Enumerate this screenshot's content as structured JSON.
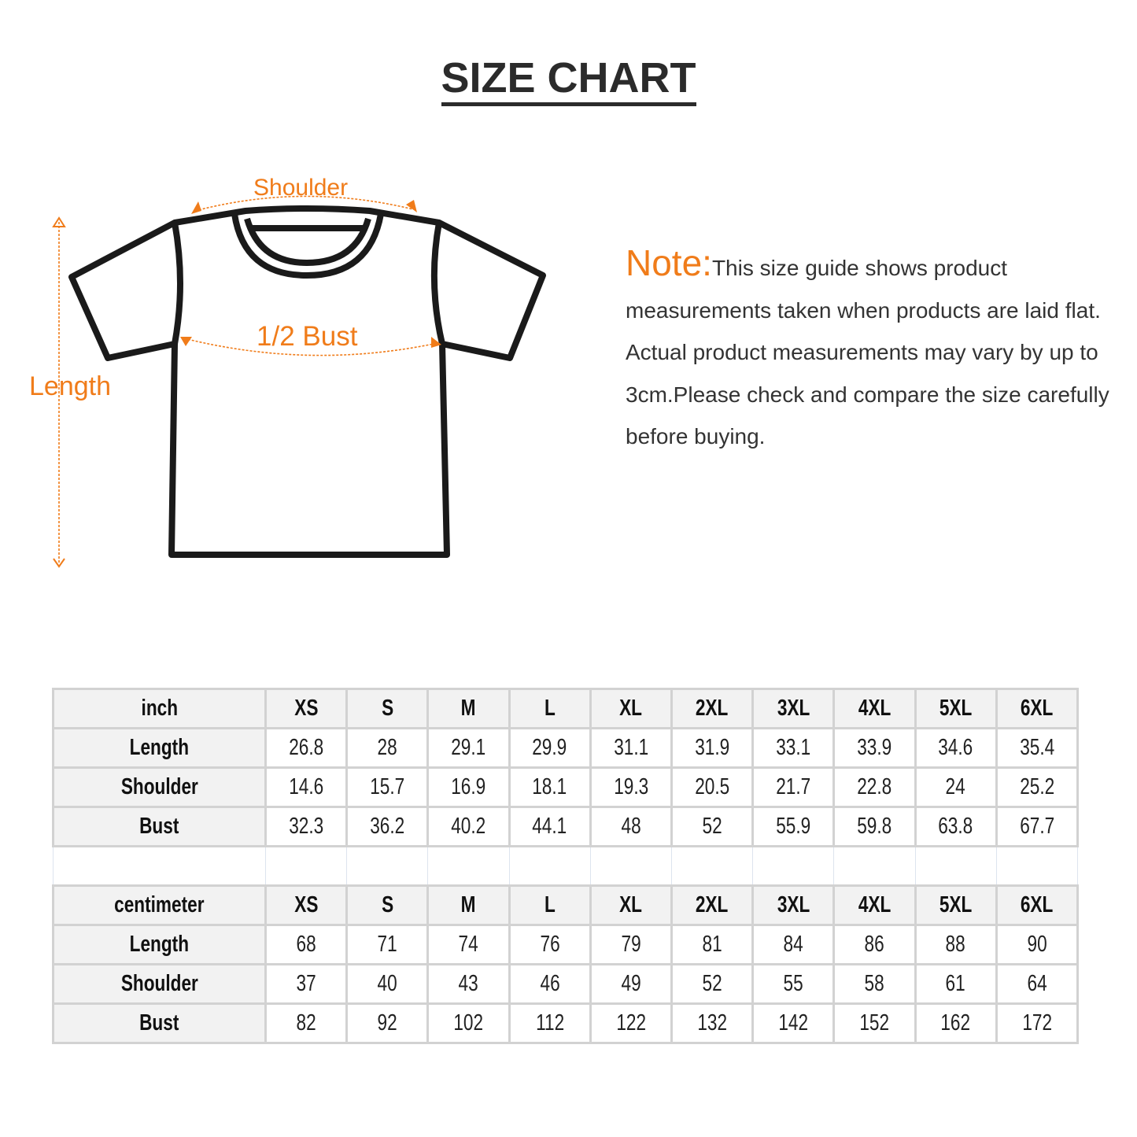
{
  "title": "SIZE CHART",
  "diagram": {
    "shoulder_label": "Shoulder",
    "bust_label": "1/2 Bust",
    "length_label": "Length",
    "accent_color": "#f07c1a"
  },
  "note": {
    "heading": "Note:",
    "text": "This size guide shows product measurements taken when products are laid flat. Actual product measurements may vary by up to 3cm.Please check and compare the size carefully before buying."
  },
  "tables": [
    {
      "unit": "inch",
      "sizes": [
        "XS",
        "S",
        "M",
        "L",
        "XL",
        "2XL",
        "3XL",
        "4XL",
        "5XL",
        "6XL"
      ],
      "rows": [
        {
          "label": "Length",
          "values": [
            "26.8",
            "28",
            "29.1",
            "29.9",
            "31.1",
            "31.9",
            "33.1",
            "33.9",
            "34.6",
            "35.4"
          ]
        },
        {
          "label": "Shoulder",
          "values": [
            "14.6",
            "15.7",
            "16.9",
            "18.1",
            "19.3",
            "20.5",
            "21.7",
            "22.8",
            "24",
            "25.2"
          ]
        },
        {
          "label": "Bust",
          "values": [
            "32.3",
            "36.2",
            "40.2",
            "44.1",
            "48",
            "52",
            "55.9",
            "59.8",
            "63.8",
            "67.7"
          ]
        }
      ]
    },
    {
      "unit": "centimeter",
      "sizes": [
        "XS",
        "S",
        "M",
        "L",
        "XL",
        "2XL",
        "3XL",
        "4XL",
        "5XL",
        "6XL"
      ],
      "rows": [
        {
          "label": "Length",
          "values": [
            "68",
            "71",
            "74",
            "76",
            "79",
            "81",
            "84",
            "86",
            "88",
            "90"
          ]
        },
        {
          "label": "Shoulder",
          "values": [
            "37",
            "40",
            "43",
            "46",
            "49",
            "52",
            "55",
            "58",
            "61",
            "64"
          ]
        },
        {
          "label": "Bust",
          "values": [
            "82",
            "92",
            "102",
            "112",
            "122",
            "132",
            "142",
            "152",
            "162",
            "172"
          ]
        }
      ]
    }
  ]
}
